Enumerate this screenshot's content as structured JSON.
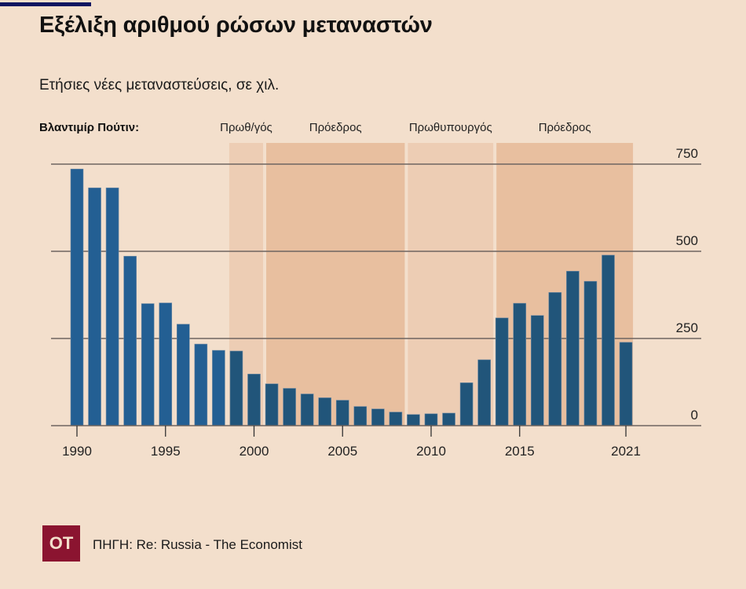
{
  "title": "Εξέλιξη αριθμού ρώσων μεταναστών",
  "subtitle": "Ετήσιες νέες μεταναστεύσεις, σε χιλ.",
  "putin_label": "Βλαντιμίρ Πούτιν:",
  "periods": [
    {
      "label": "Πρωθ/γός",
      "start": 1998.6,
      "end": 2000.6,
      "shade": "light"
    },
    {
      "label": "Πρόεδρος",
      "start": 2000.6,
      "end": 2008.6,
      "shade": "dark"
    },
    {
      "label": "Πρωθυπουργός",
      "start": 2008.6,
      "end": 2013.6,
      "shade": "light"
    },
    {
      "label": "Πρόεδρος",
      "start": 2013.6,
      "end": 2021.4,
      "shade": "dark"
    }
  ],
  "colors": {
    "background": "#f3dfcc",
    "bar": "#235f93",
    "bar_shaded": "#21557a",
    "shade_light": "#edcdb4",
    "shade_dark": "#e8bf9f",
    "grid": "#6e6560",
    "topbar": "#0d1560",
    "logo": "#8b1430"
  },
  "chart_data": {
    "type": "bar",
    "title": "Εξέλιξη αριθμού ρώσων μεταναστών",
    "subtitle": "Ετήσιες νέες μεταναστεύσεις, σε χιλ.",
    "xlabel": "",
    "ylabel": "",
    "ylim": [
      0,
      750
    ],
    "yticks": [
      0,
      250,
      500,
      750
    ],
    "ytick_labels": [
      "0",
      "250",
      "500",
      "750"
    ],
    "y_axis_position": "right",
    "grid": true,
    "xticks": [
      1990,
      1995,
      2000,
      2005,
      2010,
      2015,
      2021
    ],
    "xtick_labels": [
      "1990",
      "1995",
      "2000",
      "2005",
      "2010",
      "2015",
      "2021"
    ],
    "categories": [
      1990,
      1991,
      1992,
      1993,
      1994,
      1995,
      1996,
      1997,
      1998,
      1999,
      2000,
      2001,
      2002,
      2003,
      2004,
      2005,
      2006,
      2007,
      2008,
      2009,
      2010,
      2011,
      2012,
      2013,
      2014,
      2015,
      2016,
      2017,
      2018,
      2019,
      2020,
      2021
    ],
    "values": [
      736,
      682,
      682,
      486,
      350,
      352,
      291,
      234,
      216,
      214,
      148,
      120,
      107,
      91,
      80,
      73,
      55,
      48,
      39,
      32,
      34,
      36,
      123,
      189,
      309,
      351,
      316,
      382,
      443,
      414,
      489,
      239
    ]
  },
  "footer": {
    "logo_text": "OT",
    "source": "ΠΗΓΗ: Re: Russia - The Economist"
  }
}
